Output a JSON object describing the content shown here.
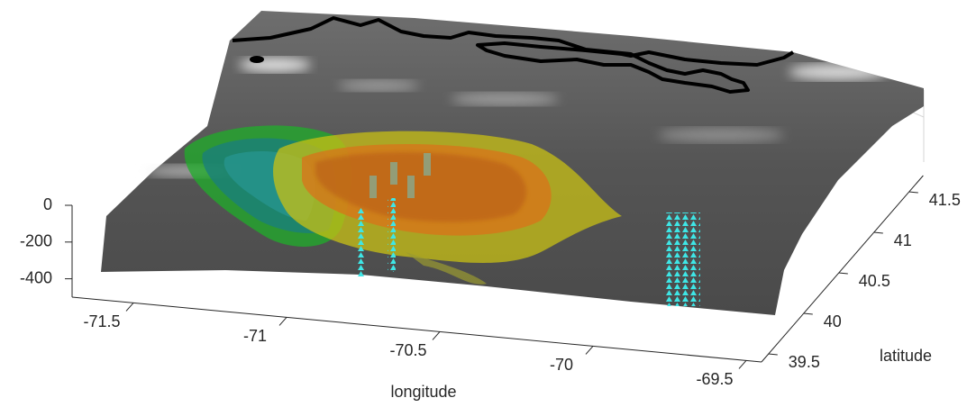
{
  "chart_data": {
    "type": "surface3d",
    "xlabel": "longitude",
    "ylabel": "latitude",
    "xlim": [
      -71.7,
      -69.45
    ],
    "ylim": [
      39.4,
      41.7
    ],
    "zlim": [
      -500,
      0
    ],
    "xticks": [
      -71.5,
      -71,
      -70.5,
      -70,
      -69.5
    ],
    "yticks": [
      39.5,
      40,
      40.5,
      41,
      41.5
    ],
    "zticks": [
      -400,
      -200,
      0
    ],
    "axis_color": "#262626"
  }
}
